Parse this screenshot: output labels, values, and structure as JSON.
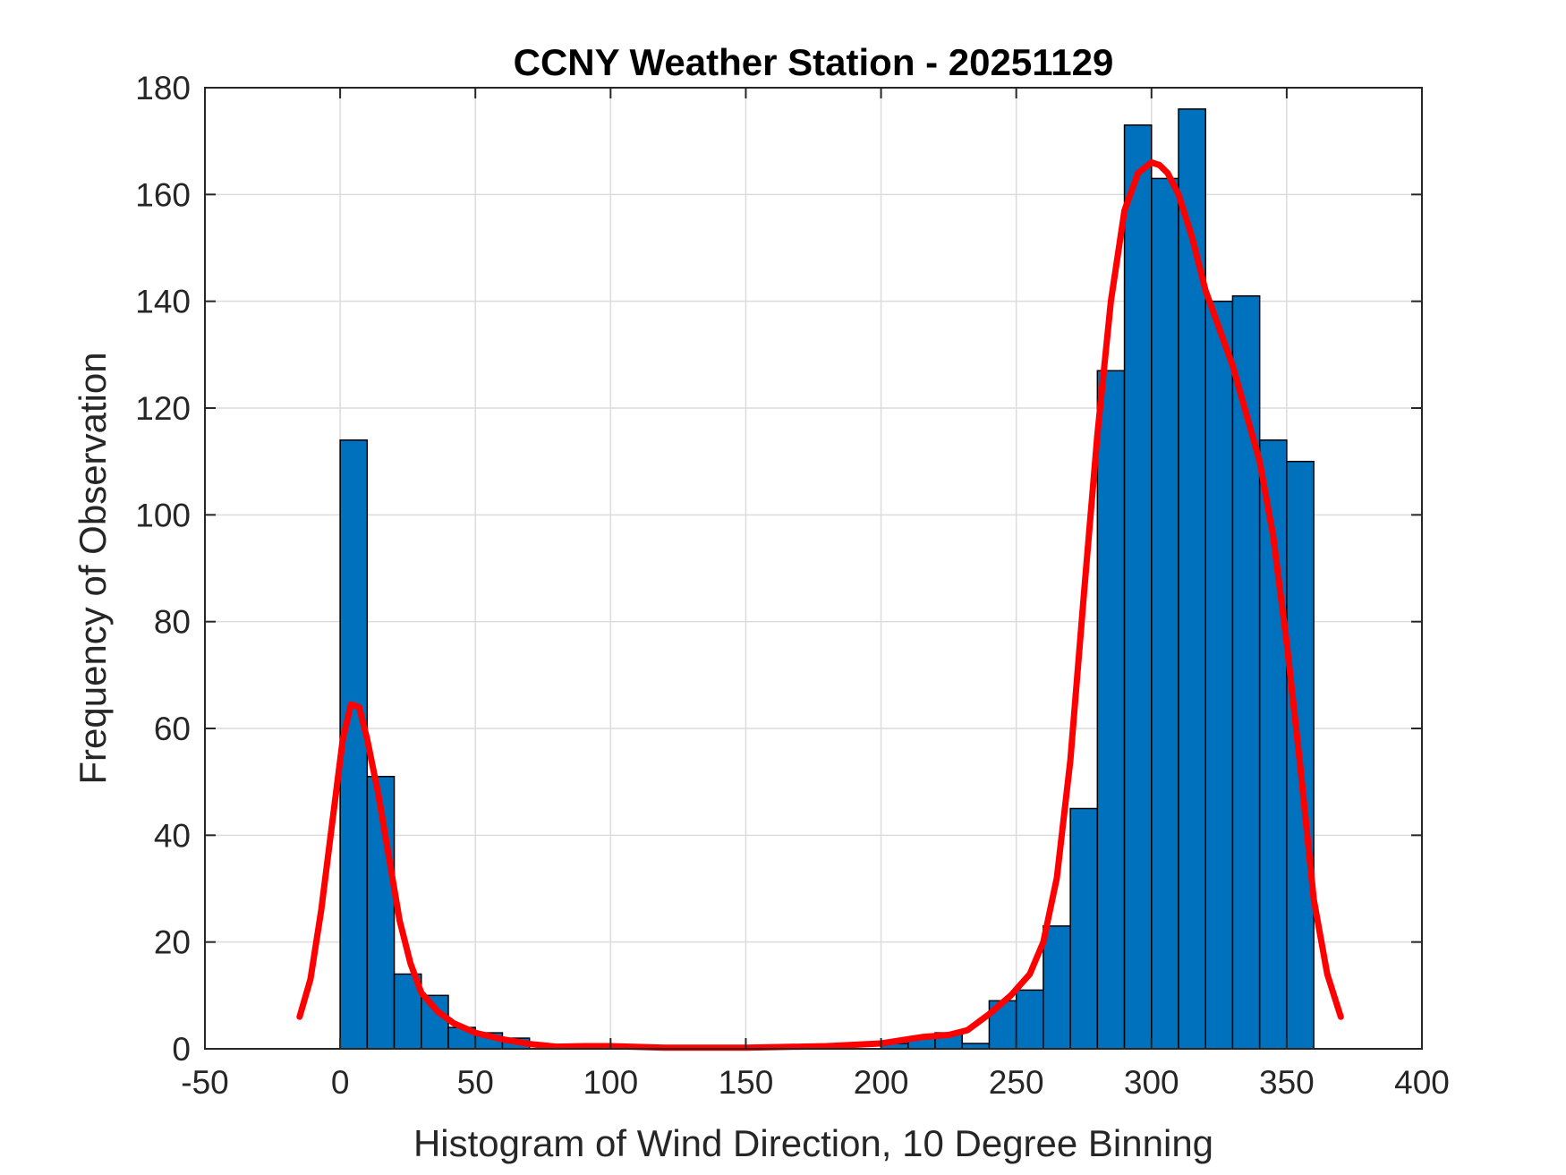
{
  "chart_data": {
    "type": "bar",
    "title": "CCNY Weather Station - 20251129",
    "xlabel": "Histogram of Wind Direction, 10 Degree Binning",
    "ylabel": "Frequency of Observation",
    "xlim": [
      -50,
      400
    ],
    "ylim": [
      0,
      180
    ],
    "grid": true,
    "x_ticks": [
      -50,
      0,
      50,
      100,
      150,
      200,
      250,
      300,
      350,
      400
    ],
    "y_ticks": [
      0,
      20,
      40,
      60,
      80,
      100,
      120,
      140,
      160,
      180
    ],
    "bin_edges": [
      0,
      10,
      20,
      30,
      40,
      50,
      60,
      70,
      80,
      90,
      100,
      110,
      120,
      130,
      140,
      150,
      160,
      170,
      180,
      190,
      200,
      210,
      220,
      230,
      240,
      250,
      260,
      270,
      280,
      290,
      300,
      310,
      320,
      330,
      340,
      350,
      360
    ],
    "values": [
      114,
      51,
      14,
      10,
      4,
      3,
      2,
      0,
      0,
      0,
      0,
      0,
      0,
      0,
      0,
      0,
      0,
      0,
      0,
      0,
      1,
      2,
      3,
      1,
      9,
      11,
      23,
      45,
      127,
      173,
      163,
      176,
      140,
      141,
      114,
      110
    ],
    "bar_color": "#0072BD",
    "curve": {
      "name": "density fit",
      "color": "#FF0000",
      "x": [
        -15,
        -11,
        -7,
        -3,
        1,
        4,
        7,
        10,
        14,
        18,
        22,
        26,
        30,
        36,
        42,
        50,
        60,
        70,
        80,
        90,
        100,
        120,
        150,
        180,
        200,
        215,
        225,
        232,
        240,
        248,
        255,
        260,
        265,
        270,
        275,
        280,
        285,
        290,
        295,
        300,
        303,
        306,
        310,
        315,
        320,
        330,
        340,
        345,
        350,
        355,
        360,
        365,
        370
      ],
      "y": [
        6,
        13,
        26,
        42,
        58,
        64.5,
        64,
        58,
        48,
        36,
        24,
        16,
        10.5,
        7,
        4.8,
        3,
        1.8,
        0.9,
        0.4,
        0.5,
        0.5,
        0.2,
        0.2,
        0.5,
        1,
        2.2,
        2.6,
        3.5,
        6.5,
        10,
        14,
        20,
        32,
        54,
        85,
        115,
        140,
        157,
        164,
        166,
        165.5,
        164,
        160,
        152,
        142,
        128,
        110,
        96,
        76,
        53,
        28,
        14,
        6
      ]
    }
  }
}
